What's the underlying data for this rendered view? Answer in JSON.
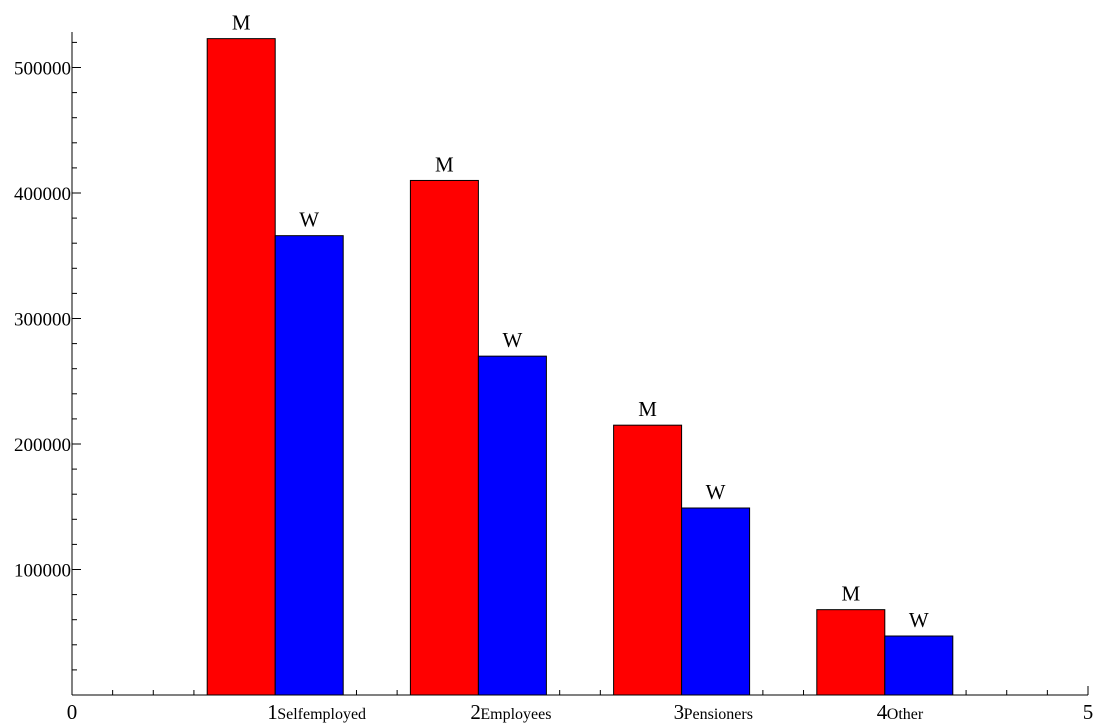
{
  "chart_data": {
    "type": "bar",
    "title": "",
    "xlabel": "",
    "ylabel": "",
    "xlim": [
      0,
      5
    ],
    "ylim": [
      0,
      525000
    ],
    "grid": false,
    "x_ticks": [
      0,
      1,
      2,
      3,
      4,
      5
    ],
    "y_ticks": [
      100000,
      200000,
      300000,
      400000,
      500000
    ],
    "y_tick_labels": [
      "100000",
      "200000",
      "300000",
      "400000",
      "500000"
    ],
    "categories": [
      {
        "x": 1,
        "name": "Selfemployed"
      },
      {
        "x": 2,
        "name": "Employees"
      },
      {
        "x": 3,
        "name": "Pensioners"
      },
      {
        "x": 4,
        "name": "Other"
      }
    ],
    "series": [
      {
        "name": "M",
        "color": "#ff0000",
        "values": [
          523000,
          410000,
          215000,
          68000
        ]
      },
      {
        "name": "W",
        "color": "#0000ff",
        "values": [
          366000,
          270000,
          149000,
          47000
        ]
      }
    ]
  }
}
